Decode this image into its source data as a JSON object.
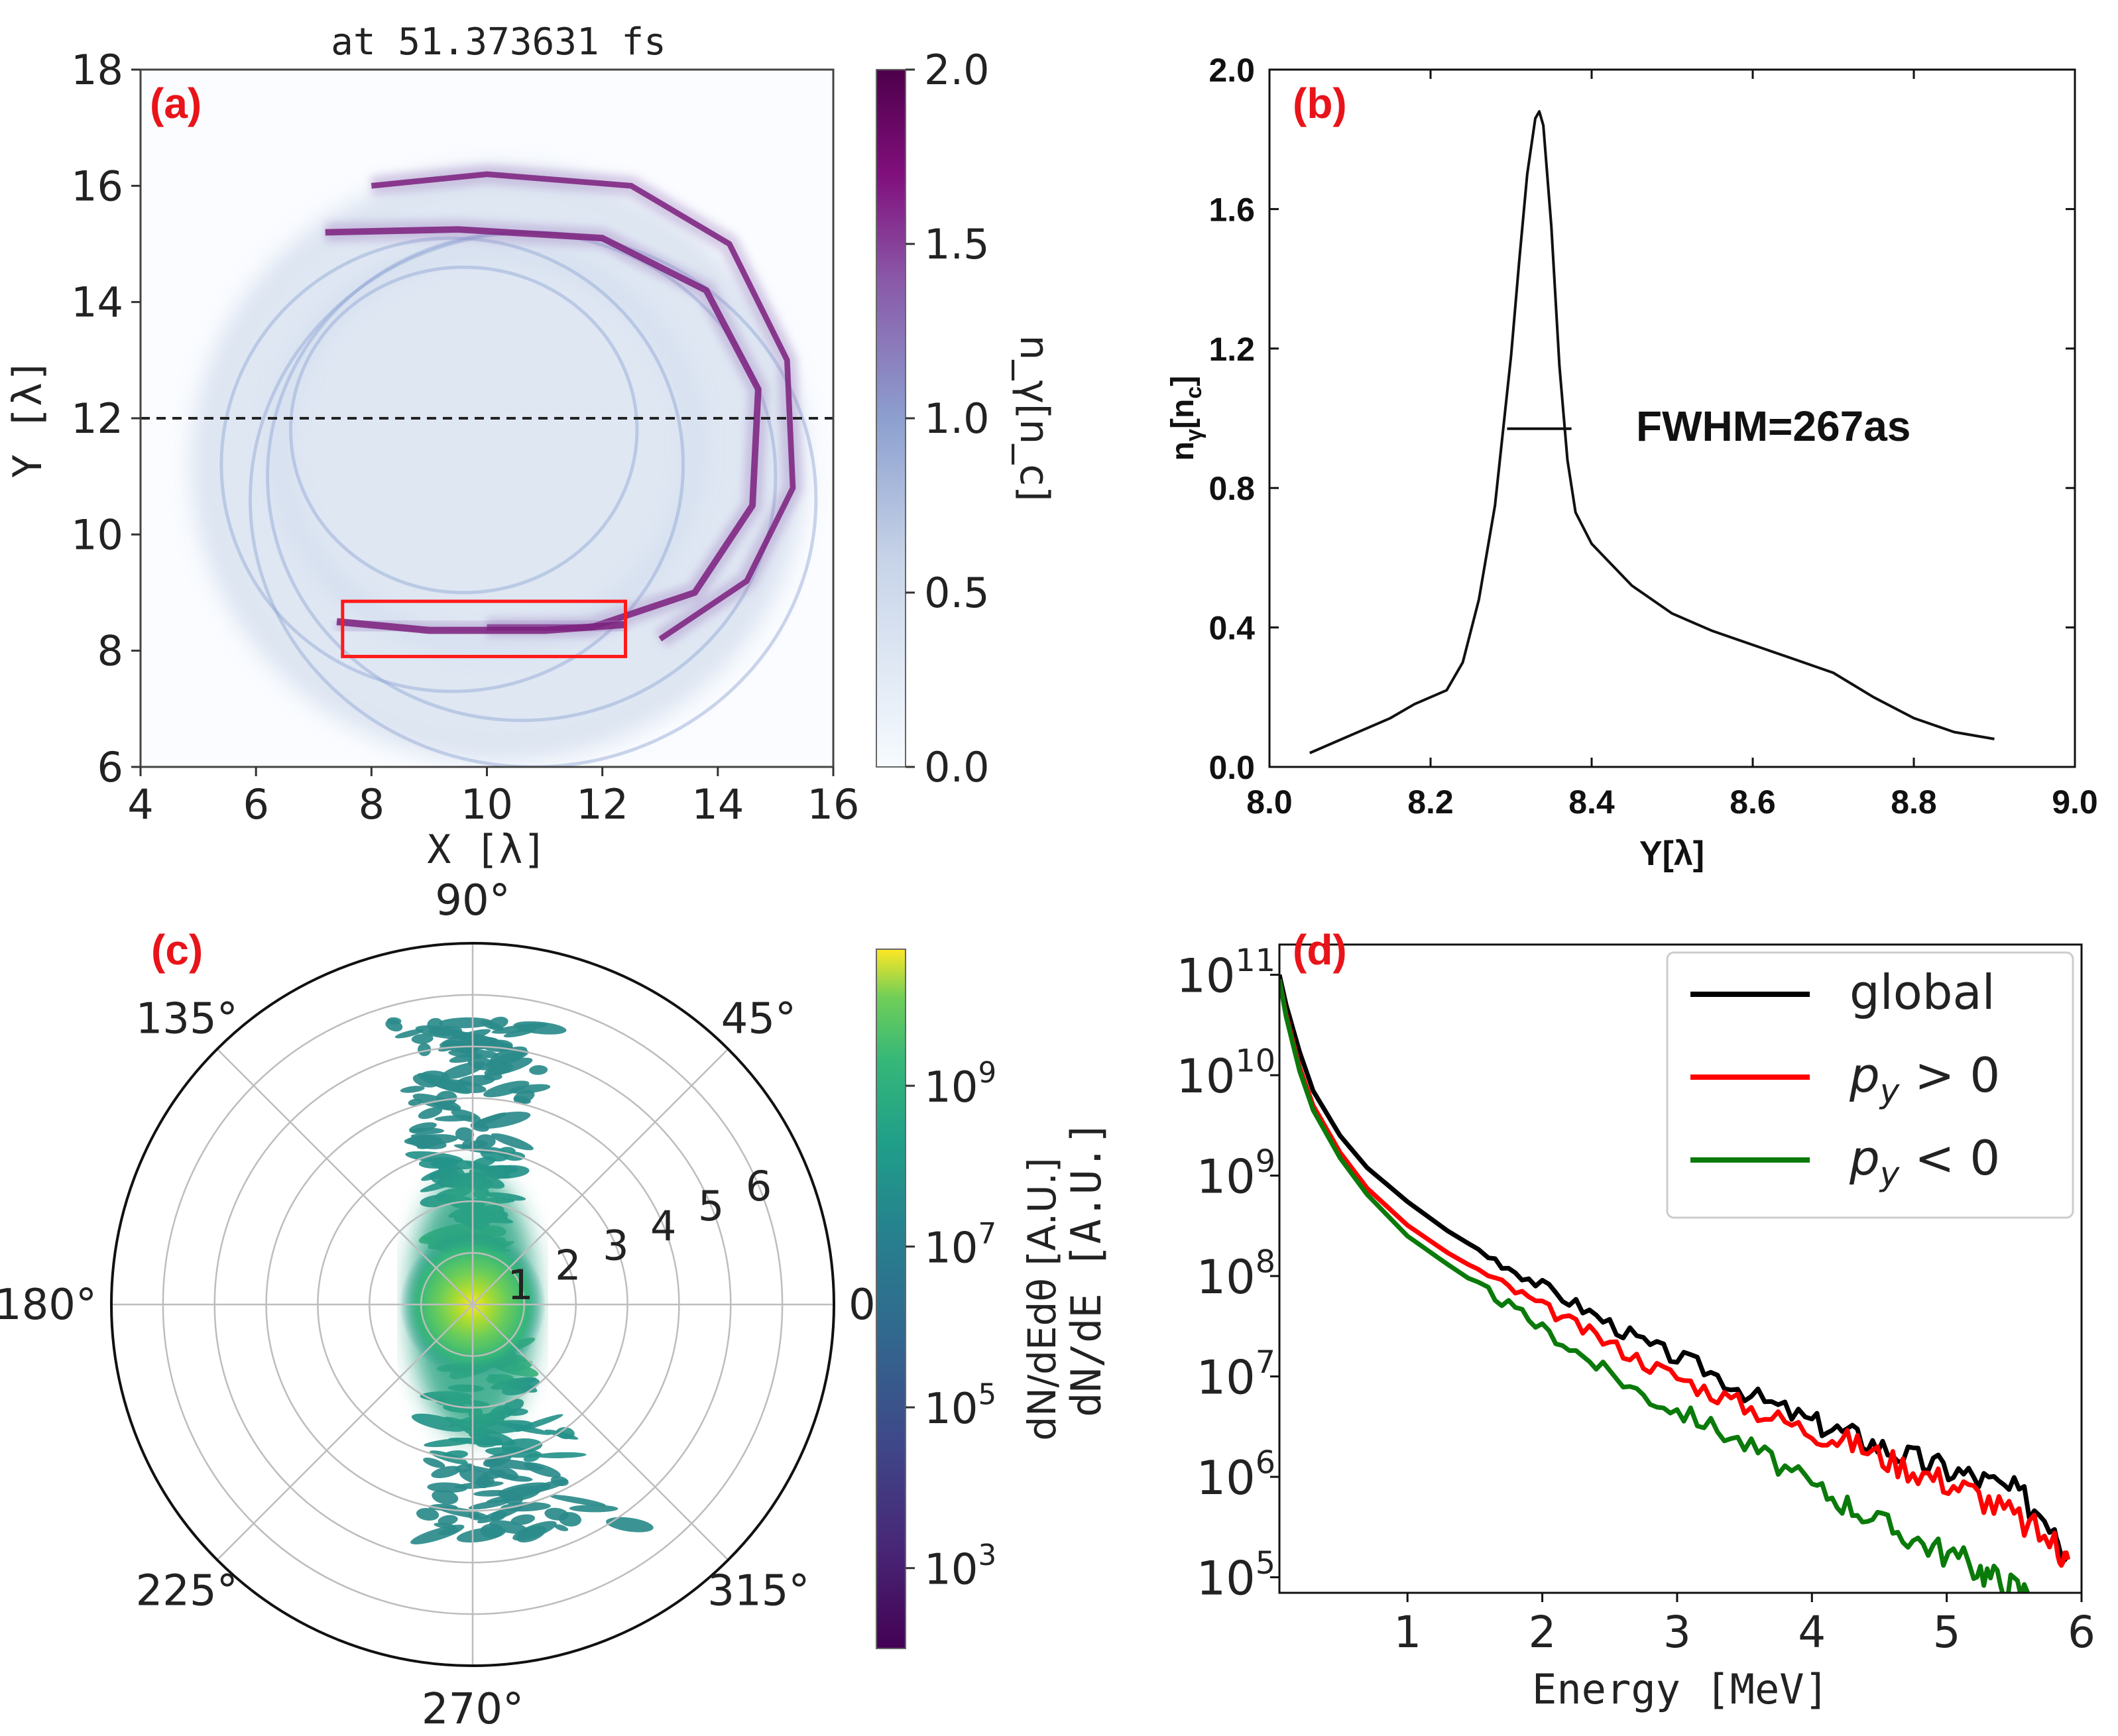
{
  "colors": {
    "panel_label": "#e8141a",
    "density_low": "#f7fbff",
    "density_mid": "#7f94c8",
    "density_high": "#4d004b",
    "arc_stroke": "#7b1f7c",
    "box": "#ff1a1a",
    "global": "#000000",
    "py_pos": "#ff0000",
    "py_neg": "#0a7a0a"
  },
  "chart_data": [
    {
      "panel": "(a)",
      "type": "heatmap",
      "title": "at 51.373631 fs",
      "xlabel": "X [λ]",
      "ylabel": "Y [λ]",
      "xlim": [
        4,
        16
      ],
      "ylim": [
        6,
        18
      ],
      "xticks": [
        "4",
        "6",
        "8",
        "10",
        "12",
        "14",
        "16"
      ],
      "yticks": [
        "6",
        "8",
        "10",
        "12",
        "14",
        "16",
        "18"
      ],
      "dashed_line_y": 12,
      "box": {
        "x0": 7.5,
        "x1": 12.4,
        "y0": 7.9,
        "y1": 8.85
      },
      "colorbar": {
        "label": "n_γ[n_c]",
        "range": [
          0.0,
          2.0
        ],
        "ticks": [
          "0.0",
          "0.5",
          "1.0",
          "1.5",
          "2.0"
        ]
      },
      "structures": [
        {
          "name": "outer-ring",
          "cx": 10.2,
          "cy": 11.2,
          "rx": 5.2,
          "ry": 5.0,
          "intensity": 0.3
        },
        {
          "name": "inner-ring",
          "cx": 10.0,
          "cy": 11.5,
          "rx": 3.6,
          "ry": 3.4,
          "intensity": 0.25
        },
        {
          "name": "arc-top",
          "points": [
            [
              7.2,
              15.2
            ],
            [
              9.5,
              15.25
            ],
            [
              12.0,
              15.1
            ],
            [
              13.8,
              14.2
            ],
            [
              14.7,
              12.5
            ],
            [
              14.6,
              10.5
            ],
            [
              13.6,
              9.0
            ],
            [
              11.8,
              8.4
            ],
            [
              10.0,
              8.4
            ]
          ],
          "intensity": 1.6
        },
        {
          "name": "arc-upper",
          "points": [
            [
              8.0,
              16.0
            ],
            [
              10.0,
              16.2
            ],
            [
              12.5,
              16.0
            ],
            [
              14.2,
              15.0
            ],
            [
              15.2,
              13.0
            ],
            [
              15.3,
              10.8
            ],
            [
              14.5,
              9.2
            ],
            [
              13.0,
              8.2
            ]
          ],
          "intensity": 1.2
        },
        {
          "name": "arc-bottom",
          "points": [
            [
              7.4,
              8.5
            ],
            [
              9.0,
              8.35
            ],
            [
              11.0,
              8.35
            ],
            [
              12.4,
              8.45
            ]
          ],
          "intensity": 1.9
        }
      ]
    },
    {
      "panel": "(b)",
      "type": "line",
      "xlabel": "Y[λ]",
      "ylabel": "n_γ[n_c]",
      "xlim": [
        8.0,
        9.0
      ],
      "ylim": [
        0.0,
        2.0
      ],
      "xticks": [
        "8.0",
        "8.2",
        "8.4",
        "8.6",
        "8.8",
        "9.0"
      ],
      "yticks": [
        "0.0",
        "0.4",
        "0.8",
        "1.2",
        "1.6",
        "2.0"
      ],
      "annotation": "FWHM=267as",
      "fwhm": {
        "x0": 8.295,
        "x1": 8.375,
        "y": 0.97
      },
      "x": [
        8.05,
        8.1,
        8.15,
        8.18,
        8.2,
        8.22,
        8.24,
        8.26,
        8.28,
        8.3,
        8.31,
        8.32,
        8.33,
        8.335,
        8.34,
        8.35,
        8.36,
        8.37,
        8.38,
        8.4,
        8.45,
        8.5,
        8.55,
        8.6,
        8.65,
        8.7,
        8.75,
        8.8,
        8.85,
        8.9
      ],
      "y": [
        0.04,
        0.09,
        0.14,
        0.18,
        0.2,
        0.22,
        0.3,
        0.48,
        0.75,
        1.18,
        1.45,
        1.7,
        1.86,
        1.88,
        1.84,
        1.55,
        1.15,
        0.88,
        0.73,
        0.64,
        0.52,
        0.44,
        0.39,
        0.35,
        0.31,
        0.27,
        0.2,
        0.14,
        0.1,
        0.08
      ]
    },
    {
      "panel": "(c)",
      "type": "heatmap",
      "subtype": "polar",
      "theta_labels": [
        "0",
        "45°",
        "90°",
        "135°",
        "180°",
        "225°",
        "270°",
        "315°"
      ],
      "r_ticks": [
        "1",
        "2",
        "3",
        "4",
        "5",
        "6"
      ],
      "rmax": 7,
      "colorbar": {
        "label": "dN/dEdθ [A.U.]",
        "scale": "log",
        "range": [
          100,
          50000000000
        ],
        "ticks": [
          "10^3",
          "10^5",
          "10^7",
          "10^9"
        ]
      },
      "distribution": {
        "description": "emission concentrated along 90° and 270°, bright core at r=0",
        "lobes": [
          {
            "direction_deg": 90,
            "extent_r": 5.5,
            "log10_level": 5
          },
          {
            "direction_deg": 270,
            "extent_r": 4.5,
            "log10_level": 5
          },
          {
            "direction_deg": 0,
            "extent_r": 1.0,
            "log10_level": 9.6
          }
        ]
      }
    },
    {
      "panel": "(d)",
      "type": "line",
      "xlabel": "Energy [MeV]",
      "ylabel": "dN/dE [A.U.]",
      "yscale": "log",
      "xlim": [
        0.05,
        6.0
      ],
      "ylim": [
        70000,
        200000000000
      ],
      "xticks": [
        "1",
        "2",
        "3",
        "4",
        "5",
        "6"
      ],
      "yticks": [
        "10^5",
        "10^6",
        "10^7",
        "10^8",
        "10^9",
        "10^10",
        "10^11"
      ],
      "legend_position": "top-right",
      "legend": [
        "global",
        "p_y > 0",
        "p_y < 0"
      ],
      "series": [
        {
          "name": "global",
          "color": "#000000",
          "x": [
            0.05,
            0.1,
            0.2,
            0.3,
            0.5,
            0.7,
            1.0,
            1.3,
            1.6,
            2.0,
            2.4,
            2.8,
            3.2,
            3.6,
            4.0,
            4.3,
            4.6,
            4.9,
            5.2,
            5.5,
            5.8,
            5.9
          ],
          "y": [
            100000000000.0,
            50000000000.0,
            17000000000.0,
            7000000000.0,
            2500000000.0,
            1200000000.0,
            550000000.0,
            280000000.0,
            160000000.0,
            80000000.0,
            40000000.0,
            20000000.0,
            12000000.0,
            6000000.0,
            3500000.0,
            2600000.0,
            1800000.0,
            1300000.0,
            1000000.0,
            700000.0,
            350000.0,
            150000.0
          ]
        },
        {
          "name": "p_y > 0",
          "color": "#ff0000",
          "x": [
            0.05,
            0.1,
            0.2,
            0.3,
            0.5,
            0.7,
            1.0,
            1.3,
            1.6,
            2.0,
            2.4,
            2.8,
            3.2,
            3.6,
            4.0,
            4.3,
            4.6,
            4.9,
            5.2,
            5.5,
            5.8,
            5.9
          ],
          "y": [
            90000000000.0,
            40000000000.0,
            12000000000.0,
            5000000000.0,
            1700000000.0,
            750000000.0,
            320000000.0,
            170000000.0,
            100000000.0,
            50000000.0,
            25000000.0,
            13000000.0,
            7500000.0,
            4500000.0,
            2800000.0,
            2200000.0,
            1400000.0,
            1000000.0,
            700000.0,
            400000.0,
            220000.0,
            150000.0
          ]
        },
        {
          "name": "p_y < 0",
          "color": "#0a7a0a",
          "x": [
            0.05,
            0.1,
            0.2,
            0.3,
            0.5,
            0.7,
            1.0,
            1.3,
            1.6,
            2.0,
            2.4,
            2.8,
            3.2,
            3.6,
            4.0,
            4.3,
            4.6,
            4.9,
            5.2,
            5.4,
            5.6
          ],
          "y": [
            90000000000.0,
            38000000000.0,
            11000000000.0,
            4500000000.0,
            1500000000.0,
            650000000.0,
            250000000.0,
            130000000.0,
            70000000.0,
            30000000.0,
            13000000.0,
            6000000.0,
            3500000.0,
            1800000.0,
            800000.0,
            500000.0,
            300000.0,
            200000.0,
            130000.0,
            90000.0,
            70000.0
          ]
        }
      ]
    }
  ]
}
